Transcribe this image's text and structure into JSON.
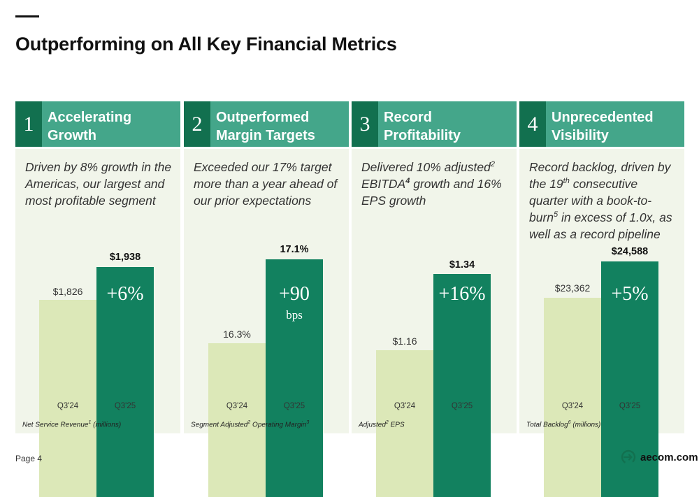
{
  "title": "Outperforming on All Key Financial Metrics",
  "page_label": "Page 4",
  "logo_text": "aecom.com",
  "colors": {
    "header": "#44a68a",
    "number_box": "#12704f",
    "bar_current": "#12815f",
    "bar_prior": "#dce8b8",
    "panel_bg": "#f1f5ea"
  },
  "panels": [
    {
      "number": "1",
      "title": "Accelerating\nGrowth",
      "desc": {
        "a": "Driven by 8% growth in the Americas, our largest and most profitable segment"
      },
      "prev_value": "$1,826",
      "curr_value": "$1,938",
      "growth": "+6%",
      "growth_unit": "",
      "tick_prev": "Q3'24",
      "tick_curr": "Q3'25",
      "footnote": {
        "a": "Net Service Revenue",
        "sup1": "1",
        "b": " (millions)"
      }
    },
    {
      "number": "2",
      "title": "Outperformed\nMargin Targets",
      "desc": {
        "a": "Exceeded our 17% target more than a year ahead of our prior expectations"
      },
      "prev_value": "16.3%",
      "curr_value": "17.1%",
      "growth": "+90",
      "growth_unit": "bps",
      "tick_prev": "Q3'24",
      "tick_curr": "Q3'25",
      "footnote": {
        "a": "Segment Adjusted",
        "sup1": "2",
        "b": " Operating Margin",
        "sup2": "3"
      }
    },
    {
      "number": "3",
      "title": "Record\nProfitability",
      "desc": {
        "a": "Delivered 10% adjusted",
        "sup1": "2",
        "b": " EBITDA",
        "sup2": "4",
        "c": " growth and 16% EPS growth"
      },
      "prev_value": "$1.16",
      "curr_value": "$1.34",
      "growth": "+16%",
      "growth_unit": "",
      "tick_prev": "Q3'24",
      "tick_curr": "Q3'25",
      "footnote": {
        "a": "Adjusted",
        "sup1": "2",
        "b": " EPS"
      }
    },
    {
      "number": "4",
      "title": "Unprecedented\nVisibility",
      "desc": {
        "a": "Record backlog, driven by the 19",
        "sup1": "th",
        "b": " consecutive quarter with a book-to-burn",
        "sup2": "5",
        "c": " in excess of 1.0x, as well as a record pipeline"
      },
      "prev_value": "$23,362",
      "curr_value": "$24,588",
      "growth": "+5%",
      "growth_unit": "",
      "tick_prev": "Q3'24",
      "tick_curr": "Q3'25",
      "footnote": {
        "a": "Total Backlog",
        "sup1": "6",
        "b": " (millions)"
      }
    }
  ]
}
